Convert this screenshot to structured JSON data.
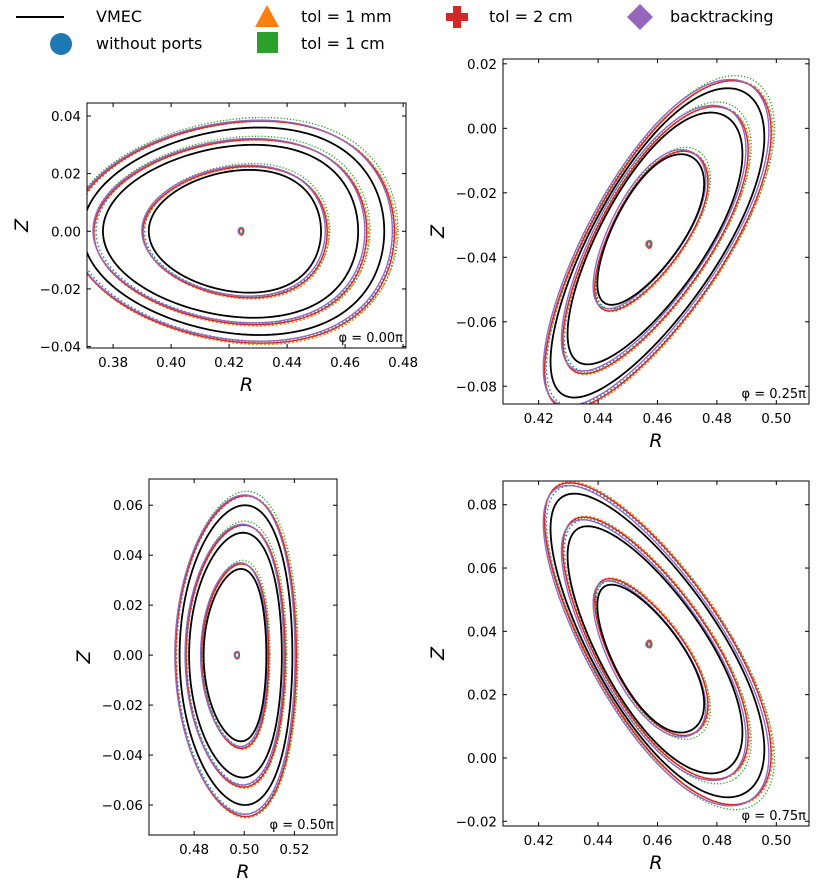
{
  "legend": [
    {
      "label": "VMEC",
      "marker": "line",
      "color": "#000000"
    },
    {
      "label": "without ports",
      "marker": "circle",
      "color": "#1f77b4"
    },
    {
      "label": "tol = 1 mm",
      "marker": "triangle",
      "color": "#ff7f0e"
    },
    {
      "label": "tol = 1 cm",
      "marker": "square",
      "color": "#2ca02c"
    },
    {
      "label": "tol = 2 cm",
      "marker": "plus",
      "color": "#d62728"
    },
    {
      "label": "backtracking",
      "marker": "diamond",
      "color": "#9467bd"
    }
  ],
  "chart_data": [
    {
      "type": "line",
      "title": "",
      "annotation": "φ = 0.00π",
      "xlabel": "R",
      "ylabel": "Z",
      "xlim": [
        0.371,
        0.481
      ],
      "ylim": [
        -0.0405,
        0.0445
      ],
      "xticks": [
        0.38,
        0.4,
        0.42,
        0.44,
        0.46,
        0.48
      ],
      "yticks": [
        -0.04,
        -0.02,
        0.0,
        0.02,
        0.04
      ],
      "xticklabels": [
        "0.38",
        "0.40",
        "0.42",
        "0.44",
        "0.46",
        "0.48"
      ],
      "yticklabels": [
        "−0.04",
        "−0.02",
        "0.00",
        "0.02",
        "0.04"
      ],
      "axis_center": [
        0.424,
        0.0
      ],
      "vmec_surfaces": [
        {
          "a": 0.0297,
          "b": 0.0213,
          "tilt_deg": 0,
          "tri": 0.0025,
          "center": [
            0.4245,
            0.0
          ]
        },
        {
          "a": 0.044,
          "b": 0.03,
          "tilt_deg": 0,
          "tri": 0.004,
          "center": [
            0.4245,
            0.0
          ]
        },
        {
          "a": 0.052,
          "b": 0.036,
          "tilt_deg": 0,
          "tri": 0.0045,
          "center": [
            0.426,
            0.0
          ]
        }
      ],
      "series": [
        {
          "name": "without ports",
          "scale": 1.06,
          "dx": 0.0005,
          "dy": 0.0
        },
        {
          "name": "tol = 1 mm",
          "scale": 1.075,
          "dx": 0.0006,
          "dy": -0.0006
        },
        {
          "name": "tol = 1 cm",
          "scale": 1.085,
          "dx": 0.0007,
          "dy": 0.0004
        },
        {
          "name": "tol = 2 cm",
          "scale": 1.07,
          "dx": 0.0002,
          "dy": -0.0003
        },
        {
          "name": "backtracking",
          "scale": 1.065,
          "dx": -0.0003,
          "dy": 0.0002
        }
      ]
    },
    {
      "type": "line",
      "title": "",
      "annotation": "φ = 0.25π",
      "xlabel": "R",
      "ylabel": "Z",
      "xlim": [
        0.408,
        0.511
      ],
      "ylim": [
        -0.0855,
        0.0215
      ],
      "xticks": [
        0.42,
        0.44,
        0.46,
        0.48,
        0.5
      ],
      "yticks": [
        -0.08,
        -0.06,
        -0.04,
        -0.02,
        0.0,
        0.02
      ],
      "xticklabels": [
        "0.42",
        "0.44",
        "0.46",
        "0.48",
        "0.50"
      ],
      "yticklabels": [
        "−0.08",
        "−0.06",
        "−0.04",
        "−0.02",
        "0.00",
        "0.02"
      ],
      "axis_center": [
        0.457,
        -0.036
      ],
      "vmec_surfaces": [
        {
          "a": 0.027,
          "b": 0.0115,
          "tilt_deg": 56,
          "tri": 0.002,
          "center": [
            0.4582,
            -0.03
          ]
        },
        {
          "a": 0.0455,
          "b": 0.0175,
          "tilt_deg": 56,
          "tri": 0.003,
          "center": [
            0.46,
            -0.032
          ]
        },
        {
          "a": 0.056,
          "b": 0.021,
          "tilt_deg": 56,
          "tri": 0.0035,
          "center": [
            0.461,
            -0.033
          ]
        }
      ],
      "series": [
        {
          "name": "without ports",
          "scale": 1.05,
          "dx": 0.0005,
          "dy": 0.0
        },
        {
          "name": "tol = 1 mm",
          "scale": 1.065,
          "dx": 0.0006,
          "dy": -0.0005
        },
        {
          "name": "tol = 1 cm",
          "scale": 1.075,
          "dx": 0.0008,
          "dy": 0.0005
        },
        {
          "name": "tol = 2 cm",
          "scale": 1.06,
          "dx": 0.0002,
          "dy": -0.0004
        },
        {
          "name": "backtracking",
          "scale": 1.055,
          "dx": -0.0004,
          "dy": 0.0002
        }
      ]
    },
    {
      "type": "line",
      "title": "",
      "annotation": "φ = 0.50π",
      "xlabel": "R",
      "ylabel": "Z",
      "xlim": [
        0.462,
        0.537
      ],
      "ylim": [
        -0.072,
        0.0705
      ],
      "xticks": [
        0.48,
        0.5,
        0.52
      ],
      "yticks": [
        -0.06,
        -0.04,
        -0.02,
        0.0,
        0.02,
        0.04,
        0.06
      ],
      "xticklabels": [
        "0.48",
        "0.50",
        "0.52"
      ],
      "yticklabels": [
        "−0.06",
        "−0.04",
        "−0.02",
        "0.00",
        "0.02",
        "0.04",
        "0.06"
      ],
      "axis_center": [
        0.497,
        0.0
      ],
      "vmec_surfaces": [
        {
          "a": 0.0125,
          "b": 0.0345,
          "tilt_deg": 0,
          "tri": 0.0012,
          "center": [
            0.4975,
            0.0
          ]
        },
        {
          "a": 0.0185,
          "b": 0.049,
          "tilt_deg": 0,
          "tri": 0.0015,
          "center": [
            0.498,
            0.0
          ]
        },
        {
          "a": 0.0225,
          "b": 0.06,
          "tilt_deg": 0,
          "tri": 0.0018,
          "center": [
            0.4985,
            0.0
          ]
        }
      ],
      "series": [
        {
          "name": "without ports",
          "scale": 1.06,
          "dx": 0.0003,
          "dy": 0.0
        },
        {
          "name": "tol = 1 mm",
          "scale": 1.075,
          "dx": 0.0004,
          "dy": -0.0006
        },
        {
          "name": "tol = 1 cm",
          "scale": 1.085,
          "dx": 0.0005,
          "dy": 0.0005
        },
        {
          "name": "tol = 2 cm",
          "scale": 1.07,
          "dx": 0.0001,
          "dy": -0.0004
        },
        {
          "name": "backtracking",
          "scale": 1.065,
          "dx": -0.0003,
          "dy": 0.0002
        }
      ]
    },
    {
      "type": "line",
      "title": "",
      "annotation": "φ = 0.75π",
      "xlabel": "R",
      "ylabel": "Z",
      "xlim": [
        0.408,
        0.511
      ],
      "ylim": [
        -0.0215,
        0.0875
      ],
      "xticks": [
        0.42,
        0.44,
        0.46,
        0.48,
        0.5
      ],
      "yticks": [
        -0.02,
        0.0,
        0.02,
        0.04,
        0.06,
        0.08
      ],
      "xticklabels": [
        "0.42",
        "0.44",
        "0.46",
        "0.48",
        "0.50"
      ],
      "yticklabels": [
        "−0.02",
        "0.00",
        "0.02",
        "0.04",
        "0.06",
        "0.08"
      ],
      "axis_center": [
        0.457,
        0.036
      ],
      "vmec_surfaces": [
        {
          "a": 0.027,
          "b": 0.0115,
          "tilt_deg": -56,
          "tri": 0.002,
          "center": [
            0.4582,
            0.03
          ]
        },
        {
          "a": 0.0455,
          "b": 0.0175,
          "tilt_deg": -56,
          "tri": 0.003,
          "center": [
            0.46,
            0.032
          ]
        },
        {
          "a": 0.056,
          "b": 0.021,
          "tilt_deg": -56,
          "tri": 0.0035,
          "center": [
            0.461,
            0.033
          ]
        }
      ],
      "series": [
        {
          "name": "without ports",
          "scale": 1.05,
          "dx": 0.0005,
          "dy": 0.0
        },
        {
          "name": "tol = 1 mm",
          "scale": 1.065,
          "dx": 0.0006,
          "dy": 0.0005
        },
        {
          "name": "tol = 1 cm",
          "scale": 1.075,
          "dx": 0.0008,
          "dy": -0.0005
        },
        {
          "name": "tol = 2 cm",
          "scale": 1.06,
          "dx": 0.0002,
          "dy": 0.0004
        },
        {
          "name": "backtracking",
          "scale": 1.055,
          "dx": -0.0004,
          "dy": -0.0002
        }
      ]
    }
  ]
}
